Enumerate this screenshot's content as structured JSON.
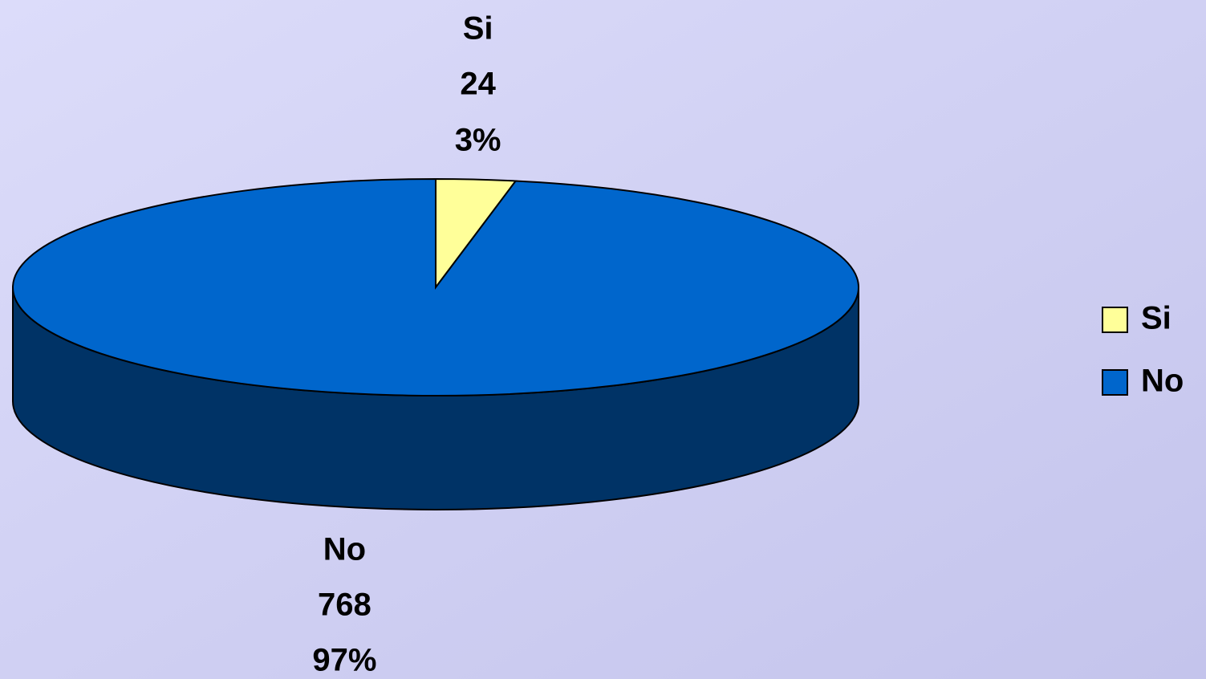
{
  "chart_data": {
    "type": "pie3d",
    "categories": [
      "Si",
      "No"
    ],
    "values": [
      24,
      768
    ],
    "percent_labels": [
      "3%",
      "97%"
    ],
    "colors": [
      "#ffff99",
      "#0066cc"
    ],
    "side_color": "#003366",
    "legend": "right"
  }
}
